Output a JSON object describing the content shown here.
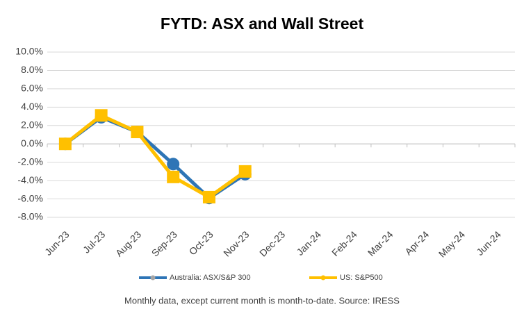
{
  "chart_data": {
    "type": "line",
    "title": "FYTD: ASX and Wall Street",
    "categories": [
      "Jun-23",
      "Jul-23",
      "Aug-23",
      "Sep-23",
      "Oct-23",
      "Nov-23",
      "Dec-23",
      "Jan-24",
      "Feb-24",
      "Mar-24",
      "Apr-24",
      "May-24",
      "Jun-24"
    ],
    "series": [
      {
        "name": "Australia: ASX/S&P 300",
        "color": "#2e75b6",
        "marker": "circle",
        "values": [
          0,
          2.9,
          1.3,
          -2.2,
          -5.9,
          -3.3,
          null,
          null,
          null,
          null,
          null,
          null,
          null
        ]
      },
      {
        "name": "US: S&P500",
        "color": "#ffc000",
        "marker": "square",
        "values": [
          0,
          3.1,
          1.3,
          -3.6,
          -5.8,
          -3.0,
          null,
          null,
          null,
          null,
          null,
          null,
          null
        ]
      }
    ],
    "ylim": [
      -8,
      10
    ],
    "yticks": [
      {
        "value": 10,
        "label": "10.0%"
      },
      {
        "value": 8,
        "label": "8.0%"
      },
      {
        "value": 6,
        "label": "6.0%"
      },
      {
        "value": 4,
        "label": "4.0%"
      },
      {
        "value": 2,
        "label": "2.0%"
      },
      {
        "value": 0,
        "label": "0.0%"
      },
      {
        "value": -2,
        "label": "-2.0%"
      },
      {
        "value": -4,
        "label": "-4.0%"
      },
      {
        "value": -6,
        "label": "-6.0%"
      },
      {
        "value": -8,
        "label": "-8.0%"
      }
    ],
    "grid": true,
    "legend": "bottom",
    "footnote": "Monthly data, except current month is month-to-date.  Source: IRESS"
  }
}
